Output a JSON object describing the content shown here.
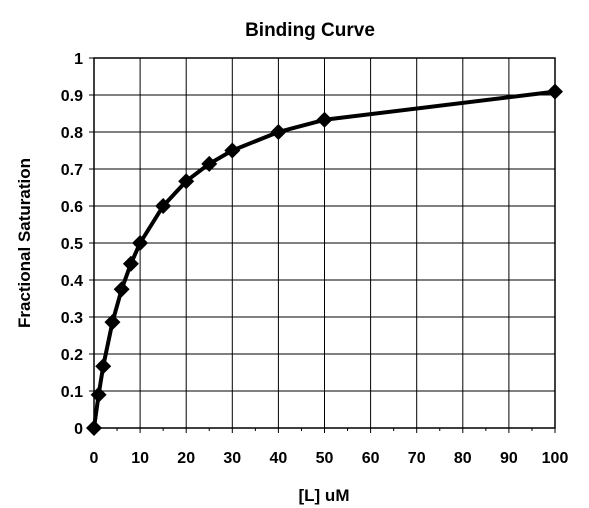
{
  "chart_data": {
    "type": "line",
    "title": "Binding Curve",
    "xlabel": "[L] uM",
    "ylabel": "Fractional Saturation",
    "xlim": [
      0,
      100
    ],
    "ylim": [
      0,
      1
    ],
    "x_ticks": [
      0,
      10,
      20,
      30,
      40,
      50,
      60,
      70,
      80,
      90,
      100
    ],
    "y_ticks": [
      0,
      0.1,
      0.2,
      0.3,
      0.4,
      0.5,
      0.6,
      0.7,
      0.8,
      0.9,
      1
    ],
    "x_tick_labels": [
      "0",
      "10",
      "20",
      "30",
      "40",
      "50",
      "60",
      "70",
      "80",
      "90",
      "100"
    ],
    "y_tick_labels": [
      "0",
      "0.1",
      "0.2",
      "0.3",
      "0.4",
      "0.5",
      "0.6",
      "0.7",
      "0.8",
      "0.9",
      "1"
    ],
    "grid": true,
    "legend": "none",
    "marker": "diamond",
    "line_color": "#000000",
    "series": [
      {
        "x": [
          0,
          1,
          2,
          4,
          6,
          8,
          10,
          15,
          20,
          25,
          30,
          40,
          50,
          100
        ],
        "y": [
          0,
          0.09,
          0.167,
          0.286,
          0.375,
          0.444,
          0.5,
          0.6,
          0.667,
          0.714,
          0.75,
          0.8,
          0.833,
          0.909
        ]
      }
    ]
  }
}
